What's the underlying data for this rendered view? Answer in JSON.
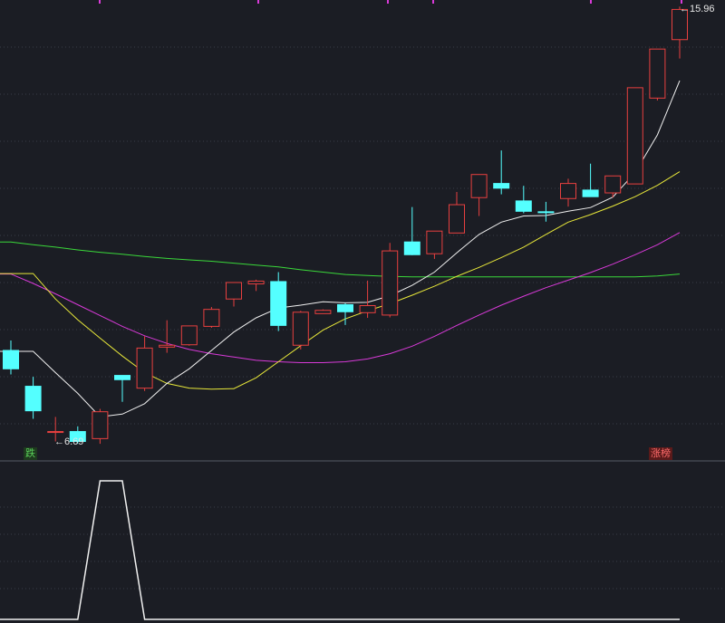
{
  "colors": {
    "background": "#1b1d24",
    "up_candle": "#e8403f",
    "down_candle": "#54ffff",
    "ma5": "#f0f0f0",
    "ma10": "#e8e83a",
    "ma20": "#d83ad8",
    "ma60": "#3ad83a",
    "indicator": "#f0f0f0",
    "grid": "#3a3d47",
    "divider": "#555a66"
  },
  "labels": {
    "low_price": "←6.69",
    "high_price": "←15.96",
    "tag_down": "跌",
    "tag_up": "涨榜"
  },
  "chart_data": {
    "type": "candlestick",
    "extremes": {
      "low": 6.69,
      "high": 15.96
    },
    "candles": [
      {
        "o": 8.67,
        "h": 8.88,
        "l": 8.16,
        "c": 8.28
      },
      {
        "o": 7.91,
        "h": 8.11,
        "l": 7.22,
        "c": 7.39
      },
      {
        "o": 6.95,
        "h": 7.26,
        "l": 6.74,
        "c": 6.95
      },
      {
        "o": 6.95,
        "h": 7.06,
        "l": 6.69,
        "c": 6.74
      },
      {
        "o": 6.8,
        "h": 7.43,
        "l": 6.69,
        "c": 7.37
      },
      {
        "o": 8.14,
        "h": 8.14,
        "l": 7.58,
        "c": 8.05
      },
      {
        "o": 7.87,
        "h": 8.97,
        "l": 7.81,
        "c": 8.72
      },
      {
        "o": 8.74,
        "h": 9.31,
        "l": 8.62,
        "c": 8.78
      },
      {
        "o": 8.79,
        "h": 9.19,
        "l": 8.77,
        "c": 9.19
      },
      {
        "o": 9.18,
        "h": 9.59,
        "l": 9.15,
        "c": 9.54
      },
      {
        "o": 9.76,
        "h": 10.11,
        "l": 9.6,
        "c": 10.11
      },
      {
        "o": 10.08,
        "h": 10.17,
        "l": 9.93,
        "c": 10.14
      },
      {
        "o": 10.13,
        "h": 10.33,
        "l": 9.08,
        "c": 9.2
      },
      {
        "o": 8.78,
        "h": 9.51,
        "l": 8.69,
        "c": 9.48
      },
      {
        "o": 9.45,
        "h": 9.54,
        "l": 9.45,
        "c": 9.52
      },
      {
        "o": 9.64,
        "h": 9.67,
        "l": 9.21,
        "c": 9.49
      },
      {
        "o": 9.47,
        "h": 10.15,
        "l": 9.36,
        "c": 9.62
      },
      {
        "o": 9.42,
        "h": 10.95,
        "l": 9.37,
        "c": 10.78
      },
      {
        "o": 10.97,
        "h": 11.71,
        "l": 10.69,
        "c": 10.7
      },
      {
        "o": 10.72,
        "h": 11.2,
        "l": 10.61,
        "c": 11.2
      },
      {
        "o": 11.16,
        "h": 12.03,
        "l": 11.16,
        "c": 11.76
      },
      {
        "o": 11.91,
        "h": 12.38,
        "l": 11.52,
        "c": 12.4
      },
      {
        "o": 12.21,
        "h": 12.91,
        "l": 11.98,
        "c": 12.11
      },
      {
        "o": 11.84,
        "h": 12.16,
        "l": 11.58,
        "c": 11.62
      },
      {
        "o": 11.61,
        "h": 11.82,
        "l": 11.4,
        "c": 11.6
      },
      {
        "o": 11.89,
        "h": 12.31,
        "l": 11.72,
        "c": 12.21
      },
      {
        "o": 12.07,
        "h": 12.63,
        "l": 11.93,
        "c": 11.93
      },
      {
        "o": 12.01,
        "h": 12.37,
        "l": 11.91,
        "c": 12.37
      },
      {
        "o": 12.2,
        "h": 14.24,
        "l": 12.2,
        "c": 14.24
      },
      {
        "o": 14.02,
        "h": 15.06,
        "l": 13.97,
        "c": 15.06
      },
      {
        "o": 15.26,
        "h": 15.96,
        "l": 14.86,
        "c": 15.9
      }
    ],
    "ma5": [
      null,
      8.65,
      8.2,
      7.76,
      7.26,
      7.32,
      7.54,
      7.97,
      8.28,
      8.67,
      9.06,
      9.36,
      9.57,
      9.63,
      9.7,
      9.68,
      9.69,
      9.83,
      10.05,
      10.33,
      10.74,
      11.13,
      11.39,
      11.52,
      11.53,
      11.62,
      11.7,
      11.92,
      12.44,
      13.24,
      14.39
    ],
    "ma10": [
      null,
      10.3,
      9.76,
      9.32,
      8.93,
      8.55,
      8.2,
      7.97,
      7.87,
      7.85,
      7.86,
      8.09,
      8.43,
      8.77,
      9.1,
      9.34,
      9.51,
      9.66,
      9.84,
      10.03,
      10.24,
      10.43,
      10.64,
      10.86,
      11.13,
      11.39,
      11.55,
      11.73,
      11.93,
      12.17,
      12.46
    ],
    "ma20": [
      10.29,
      10.09,
      9.87,
      9.64,
      9.41,
      9.18,
      8.98,
      8.82,
      8.69,
      8.6,
      8.53,
      8.46,
      8.43,
      8.41,
      8.41,
      8.43,
      8.49,
      8.6,
      8.76,
      8.97,
      9.2,
      9.42,
      9.63,
      9.82,
      10.0,
      10.16,
      10.32,
      10.5,
      10.7,
      10.91,
      11.17
    ],
    "ma60": [
      10.97,
      10.91,
      10.86,
      10.8,
      10.75,
      10.71,
      10.66,
      10.62,
      10.59,
      10.56,
      10.52,
      10.48,
      10.44,
      10.38,
      10.33,
      10.28,
      10.26,
      10.24,
      10.23,
      10.23,
      10.23,
      10.23,
      10.23,
      10.23,
      10.23,
      10.23,
      10.23,
      10.23,
      10.23,
      10.25,
      10.29
    ],
    "indicator": [
      0,
      0,
      0,
      0,
      1,
      1,
      0,
      0,
      0,
      0,
      0,
      0,
      0,
      0,
      0,
      0,
      0,
      0,
      0,
      0,
      0,
      0,
      0,
      0,
      0,
      0,
      0,
      0,
      0,
      0,
      0
    ],
    "price_range": [
      6.5,
      16.1
    ],
    "grid": true
  }
}
